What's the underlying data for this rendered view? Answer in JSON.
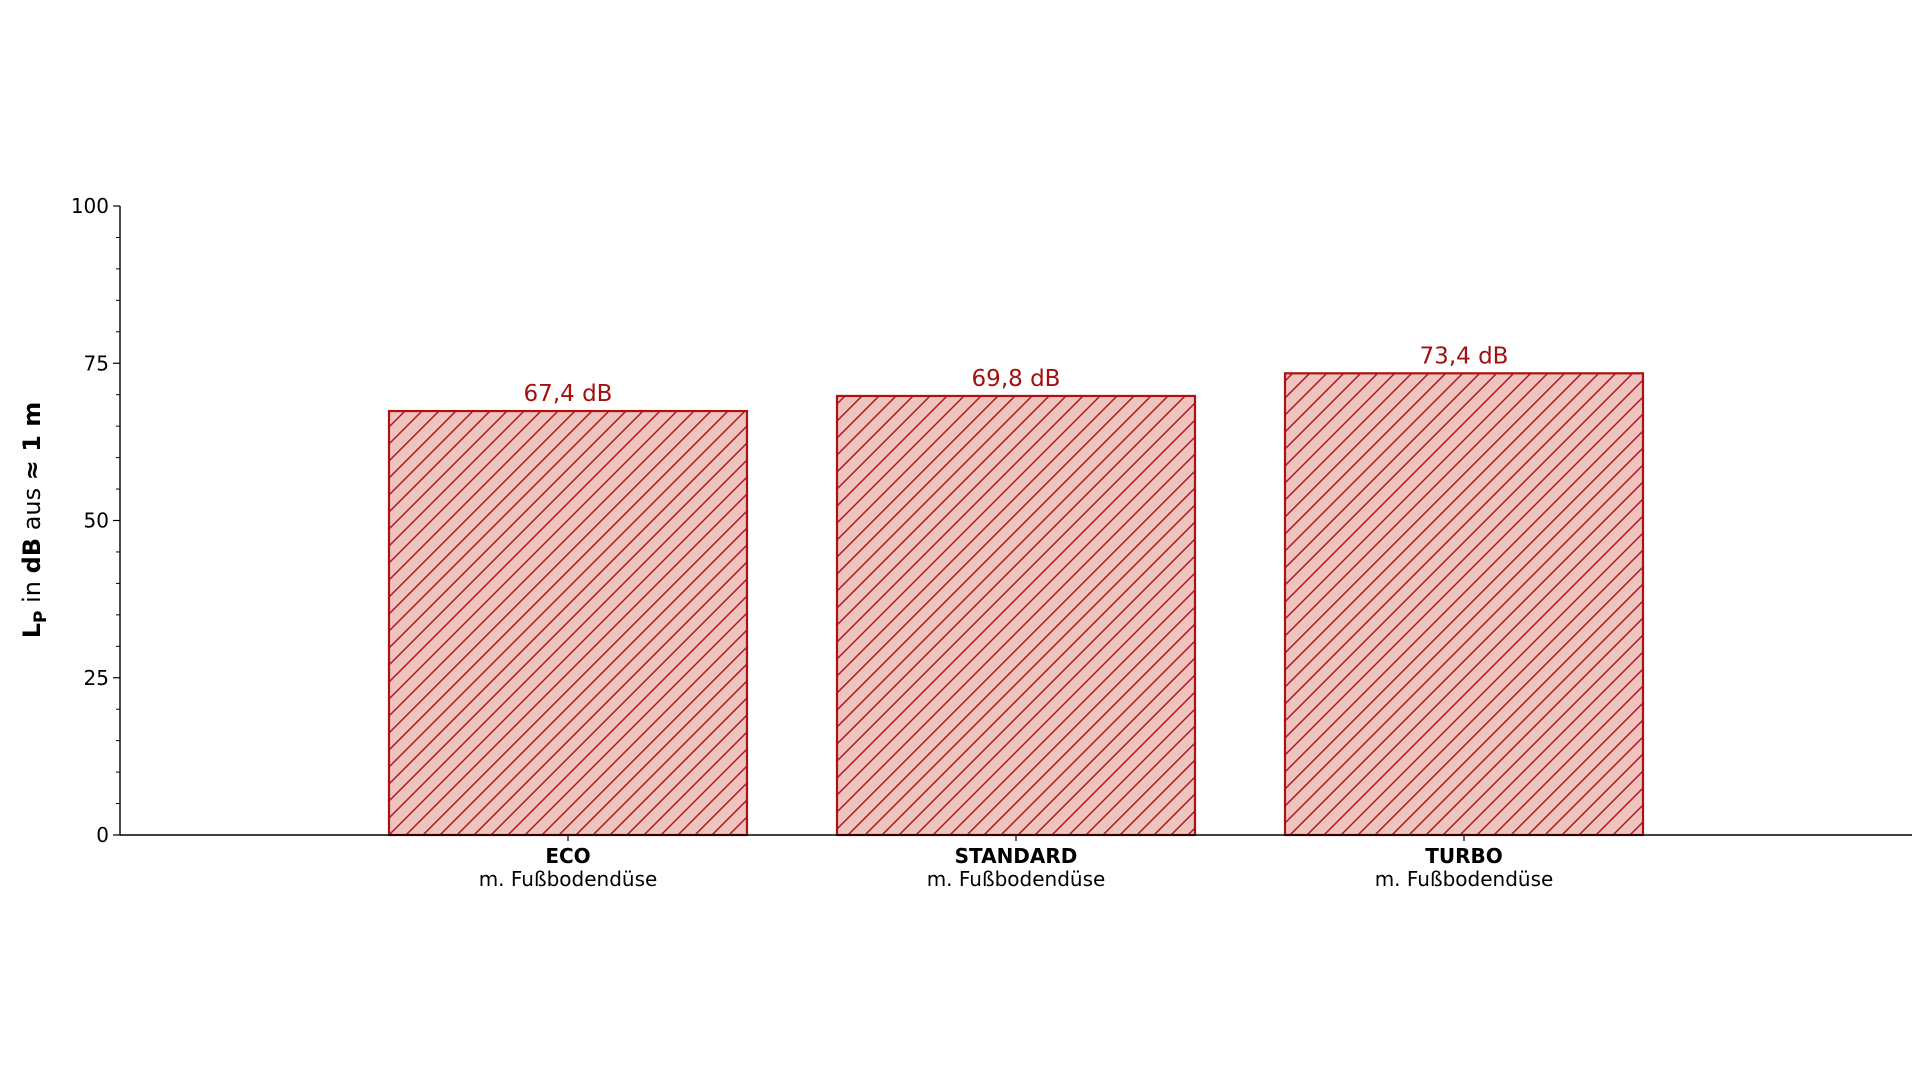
{
  "chart_data": {
    "type": "bar",
    "categories": [
      "ECO",
      "STANDARD",
      "TURBO"
    ],
    "category_sublabels": [
      "m. Fußbodendüse",
      "m. Fußbodendüse",
      "m. Fußbodendüse"
    ],
    "values": [
      67.4,
      69.8,
      73.4
    ],
    "value_labels": [
      "67,4 dB",
      "69,8 dB",
      "73,4 dB"
    ],
    "title": "",
    "xlabel": "",
    "ylabel": {
      "main": "L",
      "subscript": "P",
      "in": " in ",
      "unit": "dB",
      "from": " aus ",
      "distance": "≈ 1 m"
    },
    "ylim": [
      0,
      100
    ],
    "yticks": [
      0,
      25,
      50,
      75,
      100
    ],
    "ytick_labels": [
      "0",
      "25",
      "50",
      "75",
      "100"
    ],
    "grid": false,
    "legend": "none",
    "colors": {
      "bar_fill": "#efc3bf",
      "bar_edge": "#b01010",
      "hatch": "#b01010",
      "value_text": "#a50f0f"
    }
  }
}
